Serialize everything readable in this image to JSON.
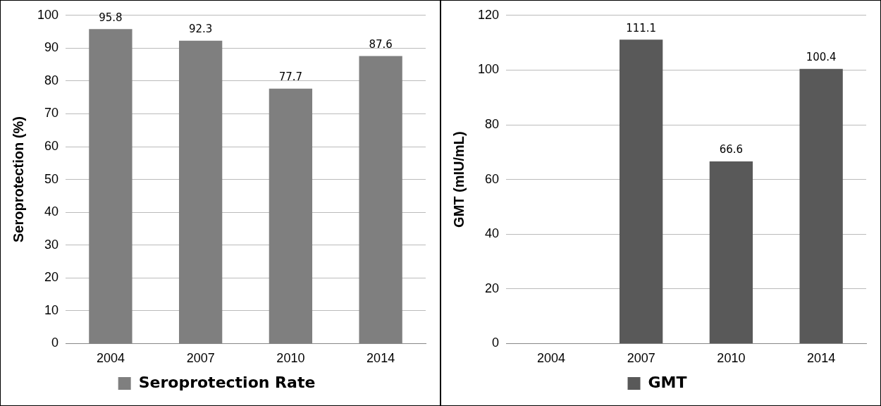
{
  "chart_data": [
    {
      "type": "bar",
      "ylabel": "Seroprotection (%)",
      "categories": [
        "2004",
        "2007",
        "2010",
        "2014"
      ],
      "series": [
        {
          "name": "Seroprotection Rate",
          "color": "#7f7f7f",
          "values": [
            95.8,
            92.3,
            77.7,
            87.6
          ]
        }
      ],
      "ylim": [
        0,
        100
      ],
      "yticks": [
        0,
        10,
        20,
        30,
        40,
        50,
        60,
        70,
        80,
        90,
        100
      ],
      "grid": "y",
      "legend": "bottom",
      "data_labels": true
    },
    {
      "type": "bar",
      "ylabel": "GMT (mIU/mL)",
      "categories": [
        "2004",
        "2007",
        "2010",
        "2014"
      ],
      "series": [
        {
          "name": "GMT",
          "color": "#595959",
          "values": [
            null,
            111.1,
            66.6,
            100.4
          ]
        }
      ],
      "ylim": [
        0,
        120
      ],
      "yticks": [
        0,
        20,
        40,
        60,
        80,
        100,
        120
      ],
      "grid": "y",
      "legend": "bottom",
      "data_labels": true
    }
  ]
}
